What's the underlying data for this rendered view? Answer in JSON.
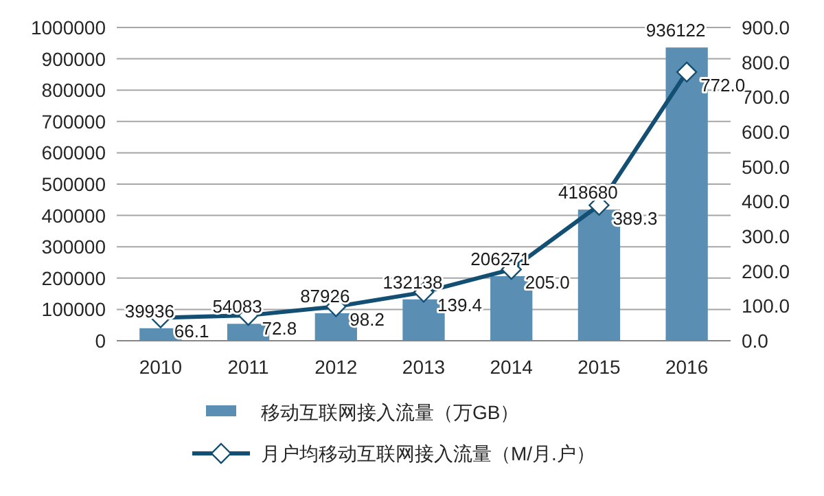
{
  "chart_data": {
    "type": "bar",
    "categories": [
      "2010",
      "2011",
      "2012",
      "2013",
      "2014",
      "2015",
      "2016"
    ],
    "series": [
      {
        "name": "移动互联网接入流量（万GB）",
        "color": "#5a8fb3",
        "values": [
          39936,
          54083,
          87926,
          132138,
          206271,
          418680,
          936122
        ],
        "value_labels": [
          "39936",
          "54083",
          "87926",
          "132138",
          "206271",
          "418680",
          "936122"
        ]
      },
      {
        "name": "月户均移动互联网接入流量（M/月.户）",
        "type": "line",
        "axis": "y2",
        "color": "#134f73",
        "marker": "diamond",
        "values": [
          66.1,
          72.8,
          98.2,
          139.4,
          205.0,
          389.3,
          772.0
        ],
        "value_labels": [
          "66.1",
          "72.8",
          "98.2",
          "139.4",
          "205.0",
          "389.3",
          "772.0"
        ]
      }
    ],
    "ylim": [
      0,
      1000000
    ],
    "yticks": [
      0,
      100000,
      200000,
      300000,
      400000,
      500000,
      600000,
      700000,
      800000,
      900000,
      1000000
    ],
    "y2lim": [
      0,
      900
    ],
    "y2ticks": [
      {
        "value": 0,
        "label": "0.0"
      },
      {
        "value": 100,
        "label": "100.0"
      },
      {
        "value": 200,
        "label": "200.0"
      },
      {
        "value": 300,
        "label": "300.0"
      },
      {
        "value": 400,
        "label": "400.0"
      },
      {
        "value": 500,
        "label": "500.0"
      },
      {
        "value": 600,
        "label": "600.0"
      },
      {
        "value": 700,
        "label": "700.0"
      },
      {
        "value": 800,
        "label": "800.0"
      },
      {
        "value": 900,
        "label": "900.0"
      }
    ],
    "grid": "y",
    "legend": "bottom"
  }
}
